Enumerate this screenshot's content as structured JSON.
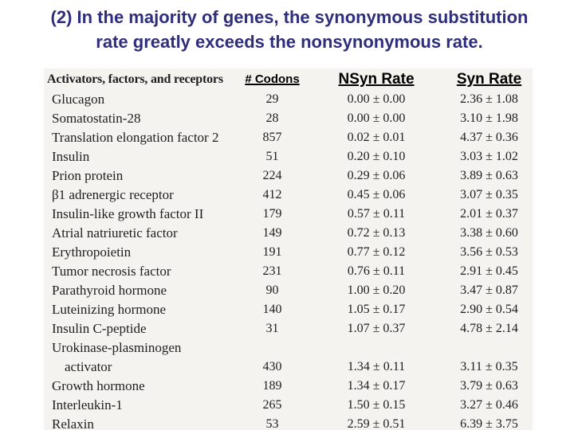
{
  "title": {
    "line1": "(2) In the majority of genes, the synonymous substitution",
    "line2": "rate greatly exceeds the nonsynonymous rate."
  },
  "colors": {
    "title_text": "#2e2e7c",
    "table_background": "#f4f3f0",
    "body_background": "#ffffff",
    "table_text": "#1e1e1e"
  },
  "table": {
    "headers": {
      "name": "Activators, factors, and receptors",
      "codons": "# Codons",
      "nsyn": "NSyn Rate",
      "syn": "Syn Rate"
    },
    "rows": [
      {
        "name": "Glucagon",
        "codons": "29",
        "nsyn": "0.00 ± 0.00",
        "syn": "2.36 ± 1.08"
      },
      {
        "name": "Somatostatin-28",
        "codons": "28",
        "nsyn": "0.00 ± 0.00",
        "syn": "3.10 ± 1.98"
      },
      {
        "name": "Translation elongation factor 2",
        "codons": "857",
        "nsyn": "0.02 ± 0.01",
        "syn": "4.37 ± 0.36"
      },
      {
        "name": "Insulin",
        "codons": "51",
        "nsyn": "0.20 ± 0.10",
        "syn": "3.03 ± 1.02"
      },
      {
        "name": "Prion protein",
        "codons": "224",
        "nsyn": "0.29 ± 0.06",
        "syn": "3.89 ± 0.63"
      },
      {
        "name": "β1 adrenergic receptor",
        "codons": "412",
        "nsyn": "0.45 ± 0.06",
        "syn": "3.07 ± 0.35"
      },
      {
        "name": "Insulin-like growth factor II",
        "codons": "179",
        "nsyn": "0.57 ± 0.11",
        "syn": "2.01 ± 0.37"
      },
      {
        "name": "Atrial natriuretic factor",
        "codons": "149",
        "nsyn": "0.72 ± 0.13",
        "syn": "3.38 ± 0.60"
      },
      {
        "name": "Erythropoietin",
        "codons": "191",
        "nsyn": "0.77 ± 0.12",
        "syn": "3.56 ± 0.53"
      },
      {
        "name": "Tumor necrosis factor",
        "codons": "231",
        "nsyn": "0.76 ± 0.11",
        "syn": "2.91 ± 0.45"
      },
      {
        "name": "Parathyroid hormone",
        "codons": "90",
        "nsyn": "1.00 ± 0.20",
        "syn": "3.47 ± 0.87"
      },
      {
        "name": "Luteinizing hormone",
        "codons": "140",
        "nsyn": "1.05 ± 0.17",
        "syn": "2.90 ± 0.54"
      },
      {
        "name": "Insulin C-peptide",
        "codons": "31",
        "nsyn": "1.07 ± 0.37",
        "syn": "4.78 ± 2.14"
      },
      {
        "name": "Urokinase-plasminogen",
        "name2": "activator",
        "codons": "430",
        "nsyn": "1.34 ± 0.11",
        "syn": "3.11 ± 0.35"
      },
      {
        "name": "Growth hormone",
        "codons": "189",
        "nsyn": "1.34 ± 0.17",
        "syn": "3.79 ± 0.63"
      },
      {
        "name": "Interleukin-1",
        "codons": "265",
        "nsyn": "1.50 ± 0.15",
        "syn": "3.27 ± 0.46"
      },
      {
        "name": "Relaxin",
        "codons": "53",
        "nsyn": "2.59 ± 0.51",
        "syn": "6.39 ± 3.75"
      }
    ]
  }
}
